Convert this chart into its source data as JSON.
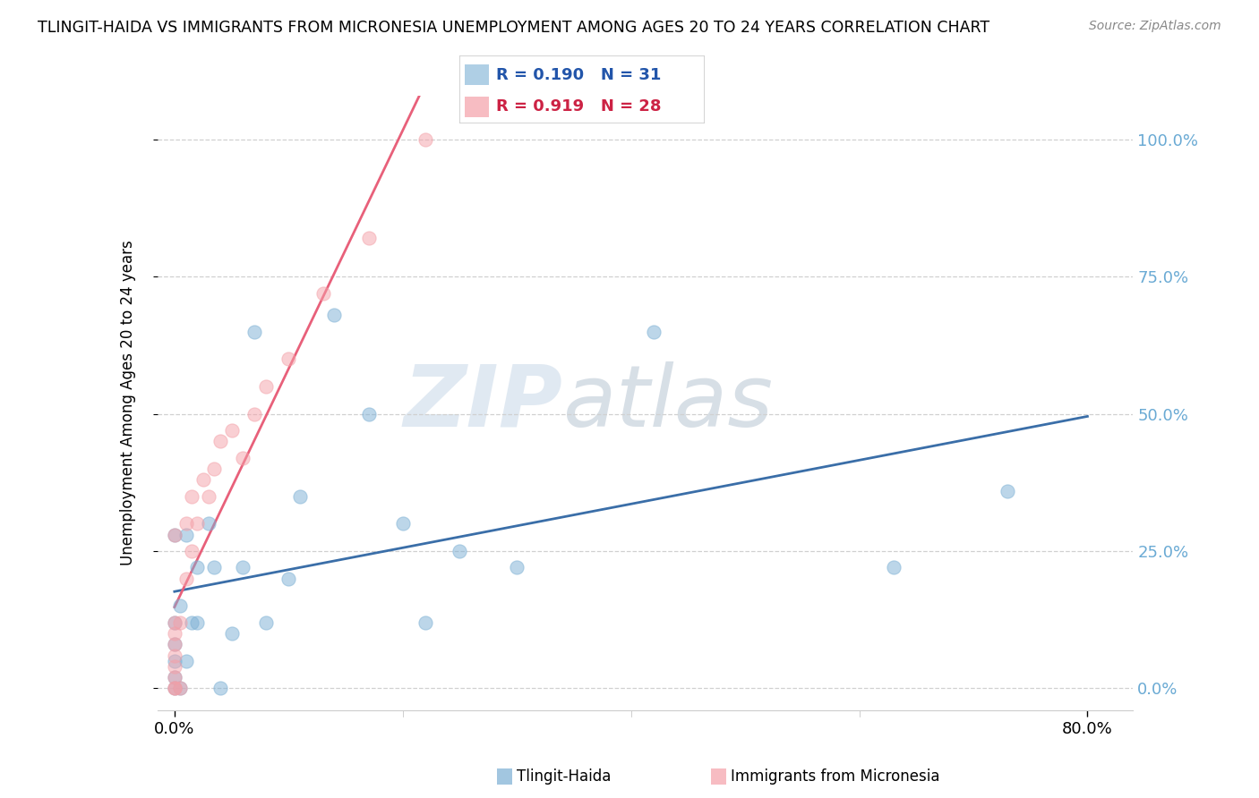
{
  "title": "TLINGIT-HAIDA VS IMMIGRANTS FROM MICRONESIA UNEMPLOYMENT AMONG AGES 20 TO 24 YEARS CORRELATION CHART",
  "source": "Source: ZipAtlas.com",
  "ylabel": "Unemployment Among Ages 20 to 24 years",
  "ytick_labels": [
    "0.0%",
    "25.0%",
    "50.0%",
    "75.0%",
    "100.0%"
  ],
  "ytick_values": [
    0.0,
    0.25,
    0.5,
    0.75,
    1.0
  ],
  "xlim": [
    -0.015,
    0.84
  ],
  "ylim": [
    -0.04,
    1.08
  ],
  "legend_entries": [
    "Tlingit-Haida",
    "Immigrants from Micronesia"
  ],
  "tlingit_color": "#7BAFD4",
  "micronesia_color": "#F4A0A8",
  "tlingit_R": 0.19,
  "tlingit_N": 31,
  "micronesia_R": 0.919,
  "micronesia_N": 28,
  "tlingit_line_color": "#3A6EA8",
  "micronesia_line_color": "#E8607A",
  "watermark_zip": "ZIP",
  "watermark_atlas": "atlas",
  "tlingit_x": [
    0.0,
    0.0,
    0.0,
    0.0,
    0.0,
    0.0,
    0.005,
    0.005,
    0.01,
    0.01,
    0.015,
    0.02,
    0.02,
    0.03,
    0.035,
    0.04,
    0.05,
    0.06,
    0.07,
    0.08,
    0.1,
    0.11,
    0.14,
    0.17,
    0.2,
    0.22,
    0.25,
    0.3,
    0.42,
    0.63,
    0.73
  ],
  "tlingit_y": [
    0.0,
    0.02,
    0.05,
    0.08,
    0.12,
    0.28,
    0.0,
    0.15,
    0.05,
    0.28,
    0.12,
    0.12,
    0.22,
    0.3,
    0.22,
    0.0,
    0.1,
    0.22,
    0.65,
    0.12,
    0.2,
    0.35,
    0.68,
    0.5,
    0.3,
    0.12,
    0.25,
    0.22,
    0.65,
    0.22,
    0.36
  ],
  "micronesia_x": [
    0.0,
    0.0,
    0.0,
    0.0,
    0.0,
    0.0,
    0.0,
    0.0,
    0.0,
    0.005,
    0.005,
    0.01,
    0.01,
    0.015,
    0.015,
    0.02,
    0.025,
    0.03,
    0.035,
    0.04,
    0.05,
    0.06,
    0.07,
    0.08,
    0.1,
    0.13,
    0.17,
    0.22
  ],
  "micronesia_y": [
    0.0,
    0.0,
    0.02,
    0.04,
    0.06,
    0.08,
    0.1,
    0.12,
    0.28,
    0.0,
    0.12,
    0.2,
    0.3,
    0.25,
    0.35,
    0.3,
    0.38,
    0.35,
    0.4,
    0.45,
    0.47,
    0.42,
    0.5,
    0.55,
    0.6,
    0.72,
    0.82,
    1.0
  ]
}
